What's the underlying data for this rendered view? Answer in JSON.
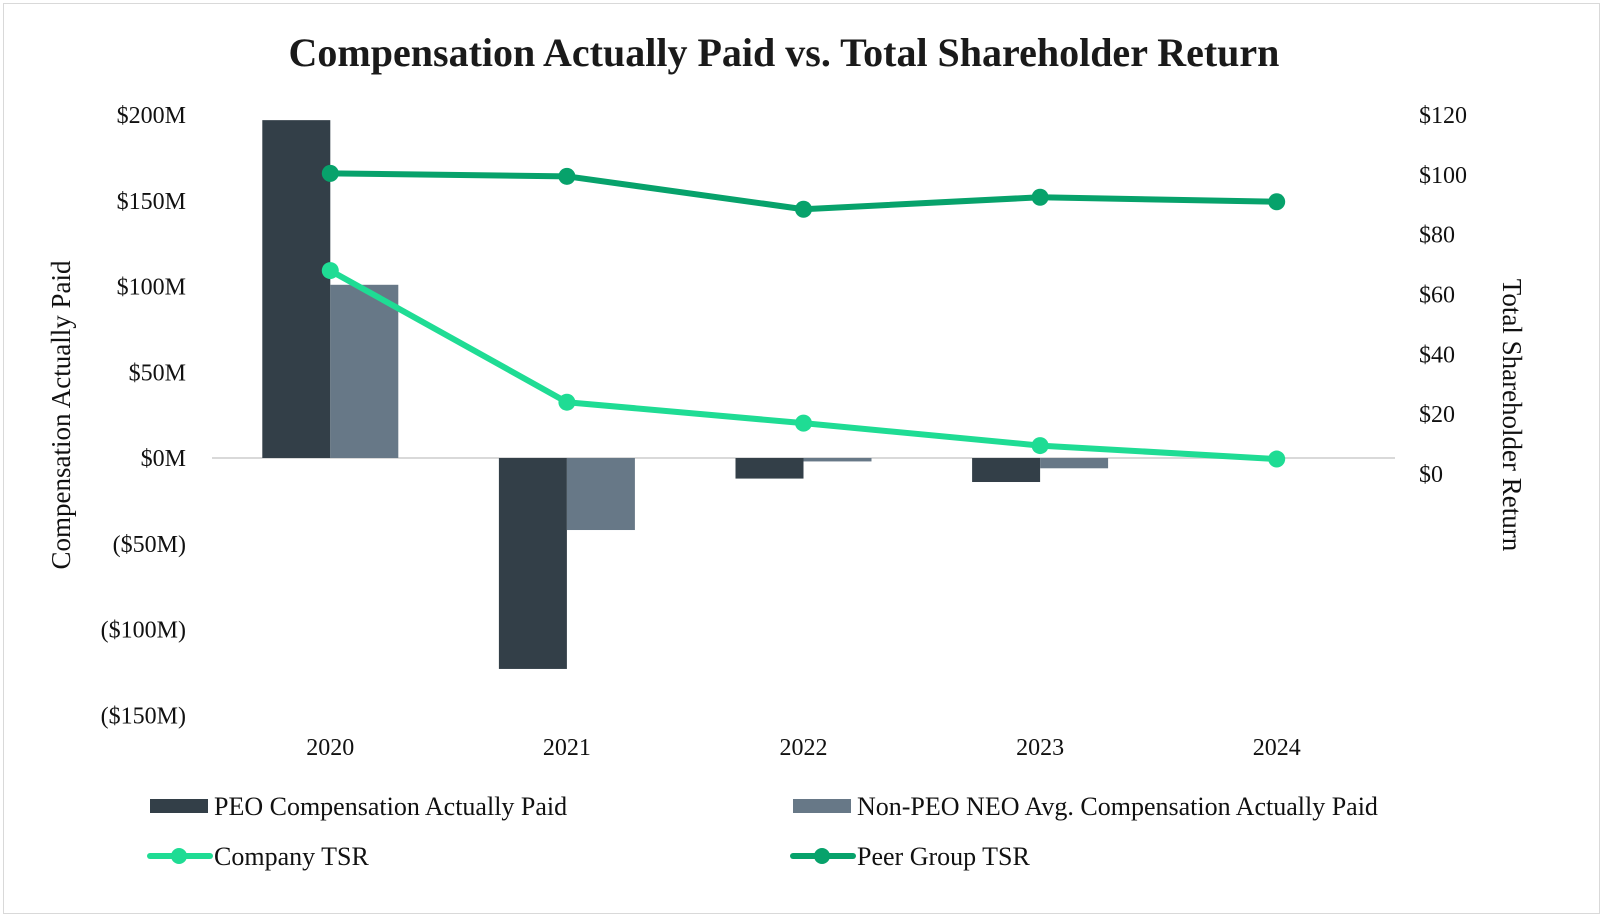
{
  "chart_data": {
    "type": "bar+line",
    "title": "Compensation Actually Paid vs. Total Shareholder Return",
    "categories": [
      "2020",
      "2021",
      "2022",
      "2023",
      "2024"
    ],
    "y_left": {
      "label": "Compensation Actually Paid",
      "range": [
        -150,
        200
      ],
      "ticks": [
        200,
        150,
        100,
        50,
        0,
        -50,
        -100,
        -150
      ],
      "tick_labels": [
        "$200M",
        "$150M",
        "$100M",
        "$50M",
        "$0M",
        "($50M)",
        "($100M)",
        "($150M)"
      ]
    },
    "y_right": {
      "label": "Total Shareholder Return",
      "range": [
        0,
        120
      ],
      "ticks": [
        120,
        100,
        80,
        60,
        40,
        20,
        0
      ],
      "tick_labels": [
        "$120",
        "$100",
        "$80",
        "$60",
        "$40",
        "$20",
        "$0"
      ]
    },
    "bar_series": [
      {
        "name": "PEO Compensation Actually Paid",
        "color": "#333f48",
        "values": [
          197,
          -123,
          -12,
          -14,
          null
        ]
      },
      {
        "name": "Non-PEO NEO Avg. Compensation Actually Paid",
        "color": "#677887",
        "values": [
          101,
          -42,
          -2,
          -6,
          null
        ]
      }
    ],
    "line_series": [
      {
        "name": "Company TSR",
        "color": "#1fdc94",
        "values": [
          68,
          24,
          17,
          9.5,
          5
        ]
      },
      {
        "name": "Peer Group TSR",
        "color": "#07a26b",
        "values": [
          100.5,
          99.5,
          88.5,
          92.5,
          91
        ]
      }
    ],
    "legend": [
      {
        "label": "PEO Compensation Actually Paid",
        "kind": "bar",
        "color": "#333f48"
      },
      {
        "label": "Non-PEO NEO Avg. Compensation Actually Paid",
        "kind": "bar",
        "color": "#677887"
      },
      {
        "label": "Company TSR",
        "kind": "line",
        "color": "#1fdc94"
      },
      {
        "label": "Peer Group TSR",
        "kind": "line",
        "color": "#07a26b"
      }
    ],
    "legend_position": "bottom",
    "grid": false
  }
}
